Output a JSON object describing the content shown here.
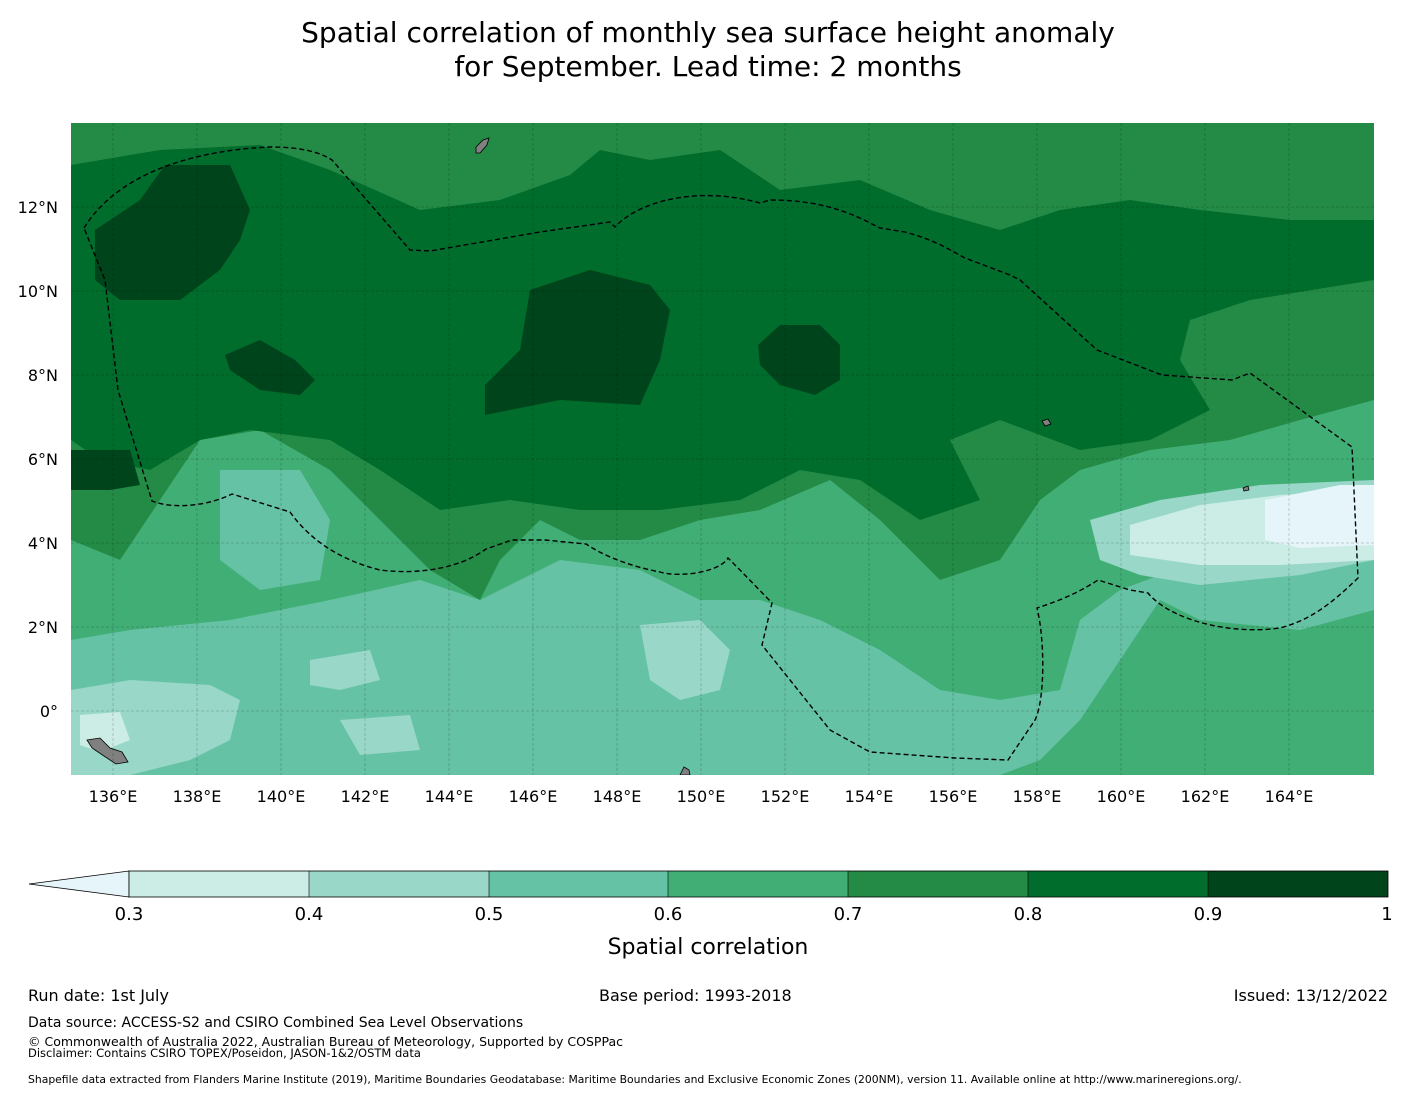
{
  "title": {
    "line1": "Spatial correlation of monthly sea surface height anomaly",
    "line2": "for September. Lead time: 2 months"
  },
  "map": {
    "lon_ticks": [
      "136°E",
      "138°E",
      "140°E",
      "142°E",
      "144°E",
      "146°E",
      "148°E",
      "150°E",
      "152°E",
      "154°E",
      "156°E",
      "158°E",
      "160°E",
      "162°E",
      "164°E"
    ],
    "lat_ticks": [
      "12°N",
      "10°N",
      "8°N",
      "6°N",
      "4°N",
      "2°N",
      "0°"
    ],
    "lon_range": [
      135,
      166
    ],
    "lat_range": [
      -1.5,
      14
    ]
  },
  "colorbar": {
    "label": "Spatial correlation",
    "ticks": [
      "0.3",
      "0.4",
      "0.5",
      "0.6",
      "0.7",
      "0.8",
      "0.9",
      "1"
    ],
    "extend": "min",
    "colors": [
      "#e5f5f9",
      "#ccece6",
      "#99d8c9",
      "#66c2a4",
      "#41ae76",
      "#238b45",
      "#006d2c",
      "#00441b"
    ]
  },
  "footer": {
    "run_date": "Run date: 1st July",
    "base_period": "Base period: 1993-2018",
    "issued": "Issued: 13/12/2022",
    "data_source": "Data source: ACCESS-S2 and CSIRO Combined Sea Level Observations",
    "copyright": "© Commonwealth of Australia 2022, Australian Bureau of Meteorology, Supported by COSPPac",
    "disclaimer": "Disclaimer: Contains CSIRO TOPEX/Poseidon, JASON-1&2/OSTM data",
    "shapefile": "Shapefile data extracted from Flanders Marine Institute (2019), Maritime Boundaries Geodatabase: Maritime Boundaries and Exclusive Economic Zones (200NM), version 11. Available online at http://www.marineregions.org/."
  }
}
